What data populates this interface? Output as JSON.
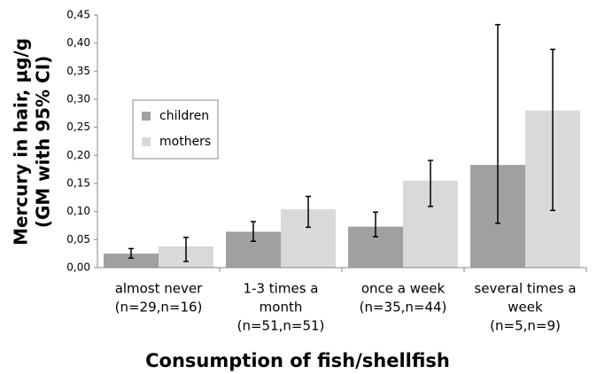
{
  "chart_data": {
    "type": "bar",
    "y_label": [
      "Mercury in hair, µg/g",
      "(GM with 95% CI)"
    ],
    "x_label": "Consumption of fish/shellfish",
    "categories": [
      [
        "almost never",
        "(n=29,n=16)"
      ],
      [
        "1-3 times a",
        "month",
        "(n=51,n=51)"
      ],
      [
        "once a week",
        "(n=35,n=44)"
      ],
      [
        "several times a",
        "week",
        "(n=5,n=9)"
      ]
    ],
    "series": [
      {
        "name": "children",
        "color": "#a0a0a0",
        "values": [
          0.025,
          0.064,
          0.073,
          0.183
        ],
        "lower": [
          0.017,
          0.047,
          0.055,
          0.079
        ],
        "upper": [
          0.034,
          0.082,
          0.099,
          0.433
        ]
      },
      {
        "name": "mothers",
        "color": "#d9d9d9",
        "values": [
          0.038,
          0.104,
          0.155,
          0.28
        ],
        "lower": [
          0.011,
          0.072,
          0.109,
          0.102
        ],
        "upper": [
          0.054,
          0.127,
          0.191,
          0.389
        ]
      }
    ],
    "ylim": [
      0,
      0.45
    ],
    "yticks": [
      {
        "value": 0,
        "label": "0,00"
      },
      {
        "value": 0.05,
        "label": "0,05"
      },
      {
        "value": 0.1,
        "label": "0,10"
      },
      {
        "value": 0.15,
        "label": "0,15"
      },
      {
        "value": 0.2,
        "label": "0,20"
      },
      {
        "value": 0.25,
        "label": "0,25"
      },
      {
        "value": 0.3,
        "label": "0,30"
      },
      {
        "value": 0.35,
        "label": "0,35"
      },
      {
        "value": 0.4,
        "label": "0,40"
      },
      {
        "value": 0.45,
        "label": "0,45"
      }
    ],
    "legend": "upper left"
  }
}
